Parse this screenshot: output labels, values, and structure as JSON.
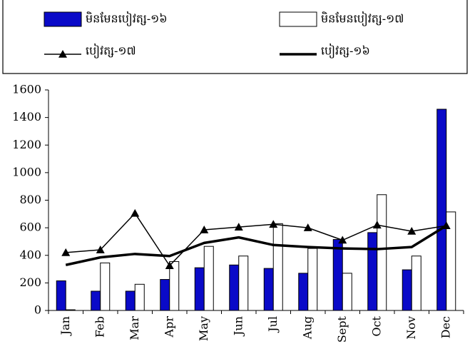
{
  "chart_data": {
    "type": "bar",
    "categories": [
      "Jan",
      "Feb",
      "Mar",
      "Apr",
      "May",
      "Jun",
      "Jul",
      "Aug",
      "Sept",
      "Oct",
      "Nov",
      "Dec"
    ],
    "series": [
      {
        "name": "មិនមែនបៀវត្ស-១៦",
        "type": "bar",
        "color": "#0a0ac8",
        "values": [
          215,
          140,
          140,
          225,
          310,
          330,
          305,
          270,
          515,
          565,
          295,
          1460
        ]
      },
      {
        "name": "មិនមែនបៀវត្ស-១៧",
        "type": "bar",
        "color": "#ffffff",
        "values": [
          5,
          345,
          190,
          355,
          465,
          395,
          630,
          450,
          270,
          840,
          395,
          715
        ]
      },
      {
        "name": "បៀវត្ស-១៧",
        "type": "line",
        "color": "#000000",
        "marker": "triangle",
        "values": [
          420,
          440,
          705,
          325,
          585,
          605,
          625,
          600,
          510,
          620,
          575,
          615
        ]
      },
      {
        "name": "បៀវត្ស-១៦",
        "type": "line",
        "color": "#000000",
        "values": [
          330,
          385,
          410,
          395,
          490,
          530,
          475,
          460,
          450,
          445,
          460,
          615
        ]
      }
    ],
    "ylim": [
      0,
      1600
    ],
    "yticks": [
      0,
      200,
      400,
      600,
      800,
      1000,
      1200,
      1400,
      1600
    ],
    "grid": false
  }
}
